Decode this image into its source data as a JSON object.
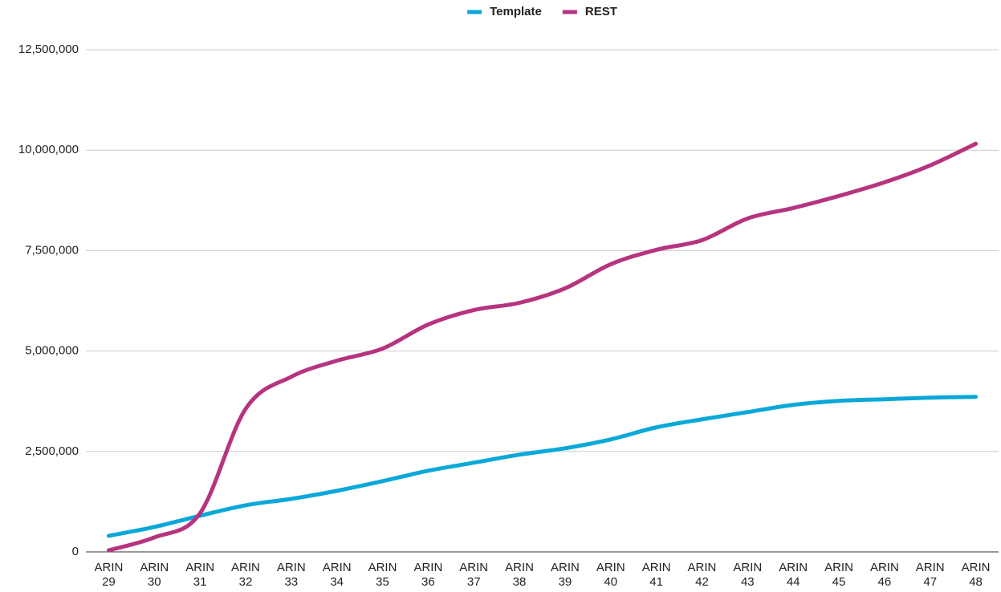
{
  "chart_data": {
    "type": "line",
    "categories": [
      "ARIN 29",
      "ARIN 30",
      "ARIN 31",
      "ARIN 32",
      "ARIN 33",
      "ARIN 34",
      "ARIN 35",
      "ARIN 36",
      "ARIN 37",
      "ARIN 38",
      "ARIN 39",
      "ARIN 40",
      "ARIN 41",
      "ARIN 42",
      "ARIN 43",
      "ARIN 44",
      "ARIN 45",
      "ARIN 46",
      "ARIN 47",
      "ARIN 48"
    ],
    "series": [
      {
        "name": "Template",
        "color": "#0aa8d8",
        "values": [
          400000,
          620000,
          900000,
          1160000,
          1320000,
          1520000,
          1760000,
          2020000,
          2220000,
          2420000,
          2580000,
          2800000,
          3100000,
          3300000,
          3480000,
          3660000,
          3760000,
          3800000,
          3840000,
          3860000
        ]
      },
      {
        "name": "REST",
        "color": "#b6347f",
        "values": [
          40000,
          360000,
          960000,
          3560000,
          4360000,
          4760000,
          5060000,
          5660000,
          6020000,
          6200000,
          6560000,
          7160000,
          7520000,
          7760000,
          8300000,
          8560000,
          8860000,
          9200000,
          9620000,
          10160000
        ]
      }
    ],
    "ylim": [
      0,
      12500000
    ],
    "yticks": [
      0,
      {
        "value": 2500000,
        "label": "2,500,000"
      },
      {
        "value": 5000000,
        "label": "5,000,000"
      },
      {
        "value": 7500000,
        "label": "7,500,000"
      },
      {
        "value": 10000000,
        "label": "10,000,000"
      },
      {
        "value": 12500000,
        "label": "12,500,000"
      }
    ],
    "grid": true,
    "legend": "top"
  }
}
